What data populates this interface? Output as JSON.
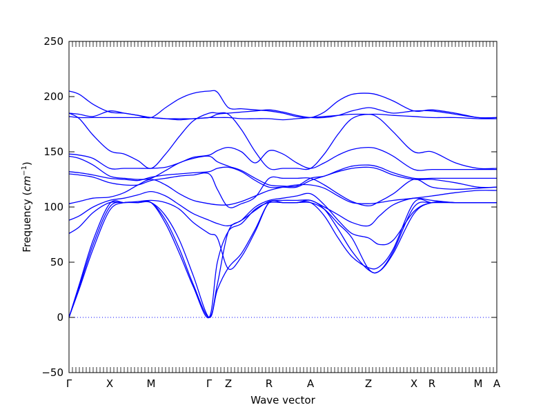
{
  "chart_data": {
    "type": "line",
    "title": "",
    "xlabel": "Wave vector",
    "ylabel": "Frequency (cm⁻¹)",
    "ylabel_main": "Frequency (",
    "ylabel_unit": "cm",
    "ylabel_exp": "−1",
    "ylabel_close": ")",
    "ylim": [
      -50,
      250
    ],
    "yticks": [
      -50,
      0,
      50,
      100,
      150,
      200,
      250
    ],
    "grid": false,
    "legend": "none",
    "line_color": "#0000ff",
    "zero_line_color": "#0000ff",
    "xlim": [
      0,
      620
    ],
    "high_symmetry_points": [
      {
        "label": "Γ",
        "x": 0
      },
      {
        "label": "X",
        "x": 59
      },
      {
        "label": "M",
        "x": 119
      },
      {
        "label": "Γ",
        "x": 203
      },
      {
        "label": "Z",
        "x": 231
      },
      {
        "label": "R",
        "x": 290
      },
      {
        "label": "A",
        "x": 350
      },
      {
        "label": "Z",
        "x": 434
      },
      {
        "label": "X",
        "x": 500
      },
      {
        "label": "R",
        "x": 526
      },
      {
        "label": "M",
        "x": 593
      },
      {
        "label": "A",
        "x": 620
      }
    ],
    "series": [
      {
        "x": [
          0,
          15,
          35,
          59,
          80,
          100,
          119,
          140,
          160,
          180,
          203,
          215,
          231,
          250,
          270,
          290,
          310,
          330,
          350,
          370,
          390,
          410,
          434,
          450,
          470,
          500,
          526,
          560,
          593,
          620
        ],
        "values": [
          205,
          202,
          193,
          186,
          185,
          183,
          181,
          180,
          180,
          180,
          181,
          181,
          181,
          180,
          180,
          180,
          179,
          180,
          181,
          182,
          183,
          184,
          184,
          184,
          183,
          182,
          181,
          181,
          180,
          180
        ]
      },
      {
        "x": [
          0,
          15,
          35,
          59,
          80,
          100,
          119,
          140,
          160,
          180,
          203,
          215,
          231,
          250,
          270,
          290,
          310,
          330,
          350,
          370,
          390,
          410,
          434,
          450,
          470,
          500,
          526,
          560,
          593,
          620
        ],
        "values": [
          185,
          184,
          182,
          187,
          185,
          183,
          181,
          190,
          198,
          203,
          205,
          204,
          190,
          189,
          188,
          187,
          185,
          182,
          181,
          186,
          196,
          202,
          203,
          201,
          196,
          187,
          188,
          185,
          181,
          181
        ]
      },
      {
        "x": [
          0,
          15,
          35,
          59,
          80,
          100,
          119,
          140,
          160,
          180,
          203,
          215,
          231,
          250,
          270,
          290,
          310,
          330,
          350,
          370,
          390,
          410,
          434,
          450,
          470,
          500,
          526,
          560,
          593,
          620
        ],
        "values": [
          182,
          181,
          181,
          181,
          181,
          181,
          181,
          180,
          179,
          180,
          181,
          184,
          185,
          186,
          187,
          188,
          186,
          183,
          181,
          181,
          183,
          187,
          190,
          188,
          185,
          187,
          187,
          184,
          181,
          181
        ]
      },
      {
        "x": [
          0,
          15,
          35,
          59,
          80,
          100,
          119,
          140,
          160,
          180,
          203,
          215,
          231,
          250,
          270,
          290,
          310,
          330,
          350,
          370,
          390,
          410,
          434,
          450,
          470,
          500,
          526,
          560,
          593,
          620
        ],
        "values": [
          185,
          180,
          165,
          151,
          148,
          142,
          135,
          148,
          164,
          178,
          185,
          185,
          184,
          170,
          150,
          135,
          135,
          135,
          135,
          148,
          166,
          180,
          184,
          180,
          168,
          150,
          150,
          140,
          135,
          135
        ]
      },
      {
        "x": [
          0,
          15,
          35,
          59,
          80,
          100,
          119,
          140,
          160,
          180,
          203,
          215,
          231,
          250,
          270,
          290,
          310,
          330,
          350,
          370,
          390,
          410,
          434,
          450,
          470,
          500,
          526,
          560,
          593,
          620
        ],
        "values": [
          148,
          147,
          144,
          135,
          135,
          135,
          135,
          136,
          140,
          145,
          147,
          151,
          154,
          150,
          140,
          151,
          148,
          140,
          135,
          140,
          147,
          152,
          154,
          152,
          146,
          134,
          134,
          134,
          134,
          134
        ]
      },
      {
        "x": [
          0,
          15,
          35,
          59,
          80,
          100,
          119,
          140,
          160,
          180,
          203,
          215,
          231,
          250,
          270,
          290,
          310,
          330,
          350,
          370,
          390,
          410,
          434,
          450,
          470,
          500,
          526,
          560,
          593,
          620
        ],
        "values": [
          146,
          144,
          138,
          128,
          126,
          125,
          126,
          133,
          140,
          144,
          146,
          141,
          137,
          133,
          126,
          120,
          119,
          119,
          126,
          128,
          133,
          137,
          138,
          136,
          131,
          126,
          126,
          126,
          126,
          126
        ]
      },
      {
        "x": [
          0,
          15,
          35,
          59,
          80,
          100,
          119,
          140,
          160,
          180,
          203,
          215,
          231,
          250,
          270,
          290,
          310,
          330,
          350,
          370,
          390,
          410,
          434,
          450,
          470,
          500,
          526,
          560,
          593,
          620
        ],
        "values": [
          132,
          131,
          129,
          126,
          125,
          124,
          127,
          129,
          130,
          131,
          132,
          135,
          136,
          132,
          124,
          118,
          118,
          118,
          124,
          128,
          132,
          135,
          136,
          134,
          129,
          125,
          125,
          122,
          118,
          118
        ]
      },
      {
        "x": [
          0,
          15,
          35,
          59,
          80,
          100,
          119,
          140,
          160,
          180,
          203,
          215,
          231,
          250,
          270,
          290,
          310,
          330,
          350,
          370,
          390,
          410,
          434,
          450,
          470,
          500,
          526,
          560,
          593,
          620
        ],
        "values": [
          130,
          129,
          127,
          122,
          120,
          120,
          124,
          126,
          128,
          129,
          130,
          116,
          100,
          103,
          109,
          126,
          126,
          126,
          126,
          120,
          112,
          105,
          101,
          105,
          112,
          125,
          118,
          116,
          117,
          118
        ]
      },
      {
        "x": [
          0,
          15,
          35,
          59,
          80,
          100,
          119,
          140,
          160,
          180,
          203,
          215,
          231,
          250,
          270,
          290,
          310,
          330,
          350,
          370,
          390,
          410,
          434,
          450,
          470,
          500,
          526,
          560,
          593,
          620
        ],
        "values": [
          103,
          105,
          108,
          109,
          113,
          120,
          125,
          120,
          112,
          106,
          103,
          102,
          102,
          105,
          110,
          115,
          118,
          120,
          120,
          117,
          110,
          104,
          103,
          104,
          106,
          108,
          110,
          113,
          115,
          115
        ]
      },
      {
        "x": [
          0,
          15,
          35,
          59,
          80,
          100,
          119,
          140,
          160,
          180,
          203,
          215,
          231,
          250,
          270,
          290,
          310,
          330,
          350,
          370,
          390,
          410,
          434,
          450,
          470,
          500,
          526,
          560,
          593,
          620
        ],
        "values": [
          88,
          92,
          100,
          106,
          108,
          111,
          114,
          110,
          102,
          94,
          88,
          85,
          83,
          88,
          97,
          105,
          106,
          106,
          106,
          100,
          93,
          86,
          83,
          92,
          102,
          108,
          106,
          104,
          104,
          104
        ]
      },
      {
        "x": [
          0,
          15,
          35,
          59,
          80,
          100,
          119,
          140,
          160,
          180,
          203,
          215,
          231,
          250,
          270,
          290,
          310,
          330,
          350,
          370,
          390,
          410,
          434,
          450,
          470,
          500,
          526,
          560,
          593,
          620
        ],
        "values": [
          76,
          82,
          95,
          104,
          104,
          105,
          106,
          104,
          98,
          86,
          76,
          72,
          44,
          55,
          78,
          104,
          104,
          104,
          104,
          92,
          72,
          55,
          45,
          46,
          62,
          104,
          104,
          104,
          104,
          104
        ]
      },
      {
        "x": [
          0,
          15,
          35,
          59,
          80,
          100,
          119,
          140,
          160,
          180,
          203,
          215,
          231,
          250,
          270,
          290,
          310,
          330,
          350,
          370,
          390,
          410,
          434,
          450,
          470,
          500,
          526,
          560,
          593,
          620
        ],
        "values": [
          0,
          30,
          70,
          103,
          104,
          104,
          104,
          92,
          70,
          38,
          0,
          25,
          45,
          58,
          80,
          104,
          104,
          104,
          106,
          98,
          80,
          60,
          43,
          42,
          60,
          100,
          104,
          104,
          104,
          104
        ]
      },
      {
        "x": [
          0,
          15,
          35,
          59,
          80,
          100,
          119,
          140,
          160,
          180,
          203,
          215,
          231,
          250,
          270,
          290,
          310,
          330,
          350,
          370,
          390,
          410,
          434,
          450,
          470,
          500,
          526,
          560,
          593,
          620
        ],
        "values": [
          0,
          28,
          66,
          100,
          104,
          104,
          104,
          88,
          62,
          30,
          0,
          30,
          78,
          88,
          100,
          106,
          108,
          110,
          112,
          102,
          88,
          76,
          72,
          66,
          70,
          96,
          104,
          104,
          104,
          104
        ]
      },
      {
        "x": [
          0,
          15,
          35,
          59,
          80,
          100,
          119,
          140,
          160,
          180,
          203,
          215,
          231,
          250,
          270,
          290,
          310,
          330,
          350,
          370,
          390,
          410,
          434,
          450,
          470,
          500,
          526,
          560,
          593,
          620
        ],
        "values": [
          0,
          26,
          62,
          97,
          104,
          104,
          104,
          85,
          58,
          28,
          0,
          50,
          78,
          85,
          98,
          104,
          104,
          104,
          104,
          98,
          85,
          72,
          44,
          42,
          58,
          94,
          104,
          104,
          104,
          104
        ]
      }
    ]
  }
}
